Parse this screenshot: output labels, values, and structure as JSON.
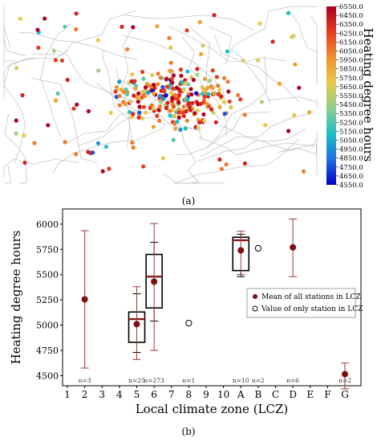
{
  "captions": {
    "a": "(a)",
    "b": "(b)"
  },
  "colors": {
    "boxplot": "#000000",
    "mean": "#7a1010",
    "whisker": "#9a3a3a",
    "median": "#8b1a1a",
    "map_lines": "#bdbdbd"
  },
  "chart_data": [
    {
      "type": "scatter",
      "subtype": "map",
      "colorbar": {
        "label": "Heating degree hours",
        "ticks": [
          "6550.0",
          "6450.0",
          "6350.0",
          "6250.0",
          "6150.0",
          "6050.0",
          "5950.0",
          "5850.0",
          "5750.0",
          "5650.0",
          "5550.0",
          "5450.0",
          "5350.0",
          "5250.0",
          "5150.0",
          "5050.0",
          "4950.0",
          "4850.0",
          "4750.0",
          "4650.0",
          "4550.0"
        ],
        "range": [
          4550,
          6550
        ],
        "stops": [
          "#0000d0",
          "#1f6fe0",
          "#18c0c8",
          "#8cd08c",
          "#e8c84a",
          "#f09030",
          "#e83a20",
          "#b00020"
        ]
      }
    },
    {
      "type": "boxplot",
      "xlabel": "Local climate zone (LCZ)",
      "ylabel": "Heating degree hours",
      "categories": [
        "1",
        "2",
        "3",
        "4",
        "5",
        "6",
        "7",
        "8",
        "9",
        "10",
        "A",
        "B",
        "C",
        "D",
        "E",
        "F",
        "G"
      ],
      "ylim": [
        4400,
        6150
      ],
      "yticks": [
        4500,
        4750,
        5000,
        5250,
        5500,
        5750,
        6000
      ],
      "legend": {
        "position": "right",
        "entries": [
          "Mean of all stations in LCZ",
          "Value of only station in LCZ"
        ]
      },
      "counts": [
        {
          "category": "2",
          "label": "n=3"
        },
        {
          "category": "5",
          "label": "n=25"
        },
        {
          "category": "6",
          "label": "n=273"
        },
        {
          "category": "8",
          "label": "n=1"
        },
        {
          "category": "A",
          "label": "n=10"
        },
        {
          "category": "B",
          "label": "n=2"
        },
        {
          "category": "D",
          "label": "n=6"
        },
        {
          "category": "G",
          "label": "n=2"
        }
      ],
      "means": [
        {
          "category": "2",
          "mean": 5255,
          "lo": 4575,
          "hi": 5935
        },
        {
          "category": "5",
          "mean": 5010,
          "lo": 4660,
          "hi": 5380
        },
        {
          "category": "6",
          "mean": 5430,
          "lo": 4750,
          "hi": 6005
        },
        {
          "category": "A",
          "mean": 5740,
          "lo": 5500,
          "hi": 5930
        },
        {
          "category": "D",
          "mean": 5770,
          "lo": 5480,
          "hi": 6050
        },
        {
          "category": "G",
          "mean": 4515,
          "lo": 4370,
          "hi": 4625
        }
      ],
      "boxes": [
        {
          "category": "5",
          "q1": 4830,
          "median": 5060,
          "q3": 5130,
          "whisker_lo": 4730,
          "whisker_hi": 5310
        },
        {
          "category": "6",
          "q1": 5170,
          "median": 5480,
          "q3": 5700,
          "whisker_lo": 5040,
          "whisker_hi": 5820
        },
        {
          "category": "A",
          "q1": 5540,
          "median": 5840,
          "q3": 5870,
          "whisker_lo": 5480,
          "whisker_hi": 5900
        }
      ],
      "single_points": [
        {
          "category": "8",
          "value": 5020
        },
        {
          "category": "B",
          "value": 5760
        }
      ]
    }
  ]
}
